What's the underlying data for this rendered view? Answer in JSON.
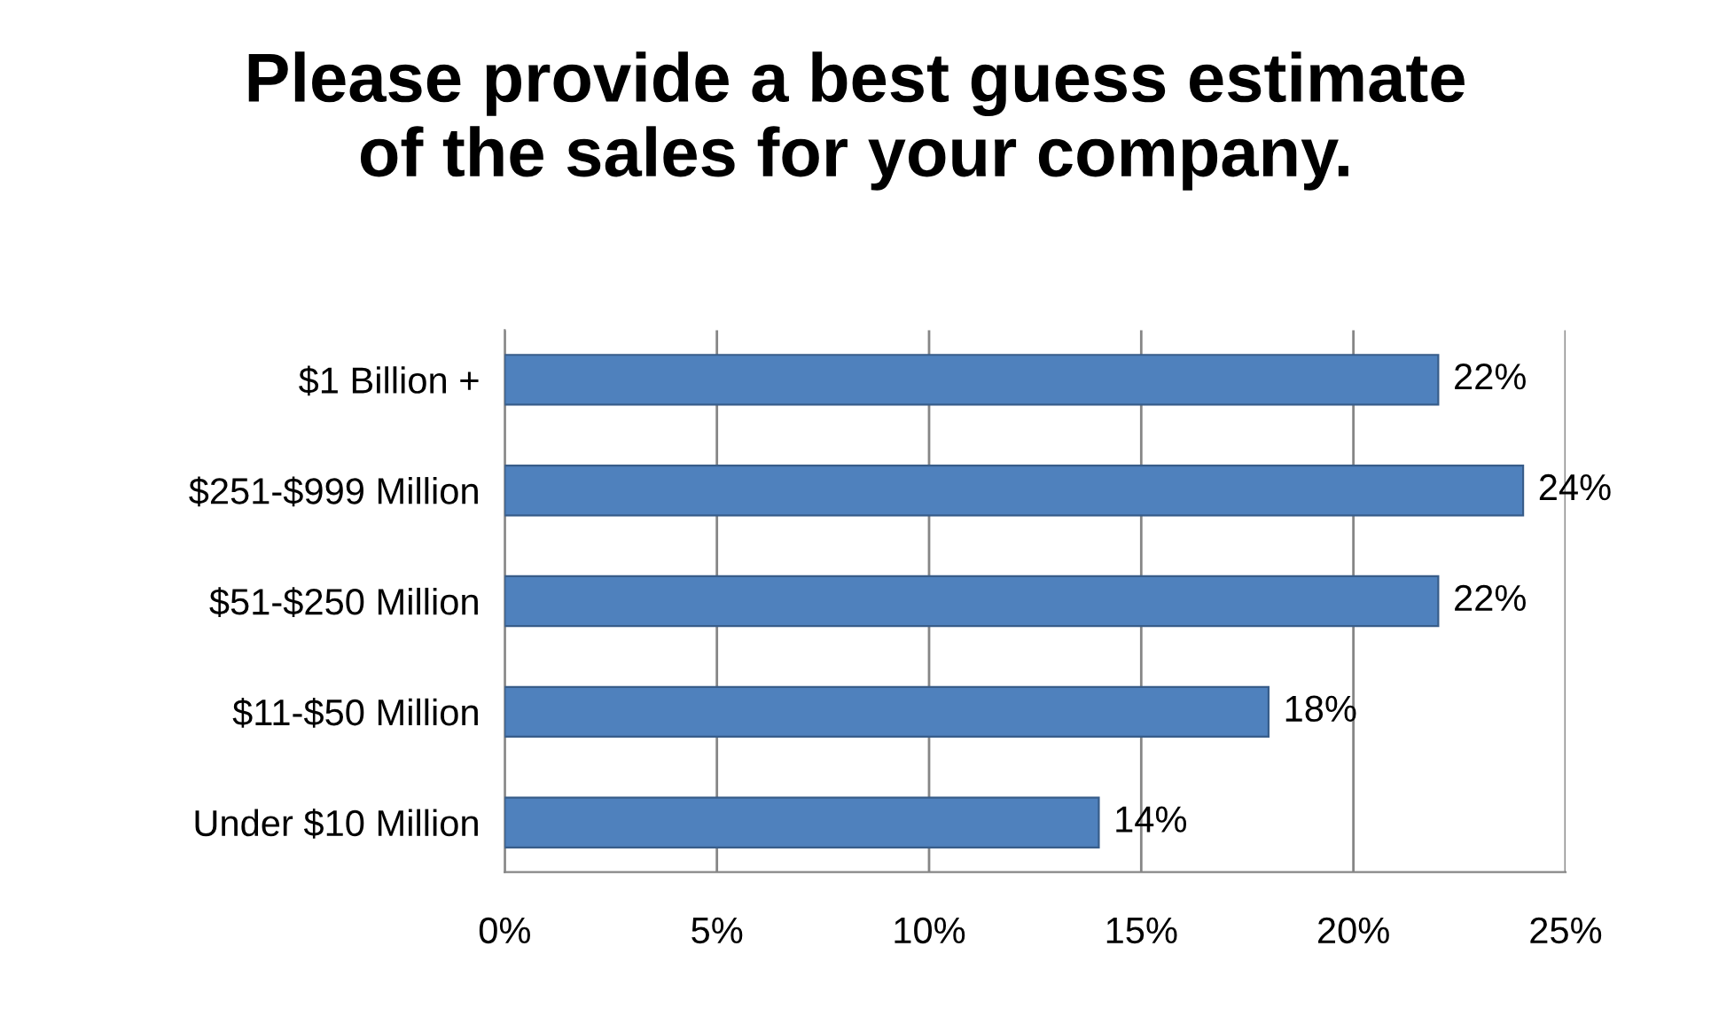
{
  "chart_data": {
    "type": "bar",
    "orientation": "horizontal",
    "title": "Please provide a best guess estimate\nof the sales for your company.",
    "categories": [
      "$1 Billion +",
      "$251-$999 Million",
      "$51-$250 Million",
      "$11-$50 Million",
      "Under $10 Million"
    ],
    "values": [
      22,
      24,
      22,
      18,
      14
    ],
    "value_labels": [
      "22%",
      "24%",
      "22%",
      "18%",
      "14%"
    ],
    "color": "#4f81bd",
    "xlim": [
      0,
      25
    ],
    "xticks": [
      {
        "value": 0,
        "label": "0%"
      },
      {
        "value": 5,
        "label": "5%"
      },
      {
        "value": 10,
        "label": "10%"
      },
      {
        "value": 15,
        "label": "15%"
      },
      {
        "value": 20,
        "label": "20%"
      },
      {
        "value": 25,
        "label": "25%"
      }
    ],
    "grid": "x",
    "legend": false
  }
}
